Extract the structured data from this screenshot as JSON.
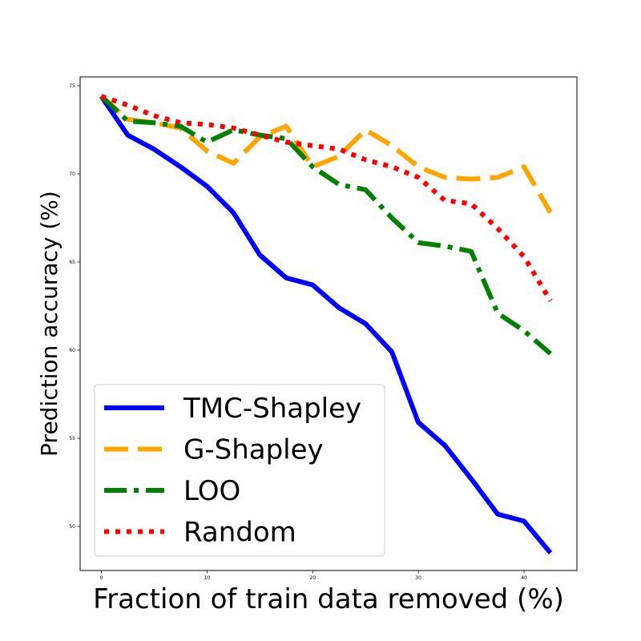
{
  "chart_data": {
    "type": "line",
    "title": "",
    "xlabel": "Fraction of train data removed (%)",
    "ylabel": "Prediction accuracy (%)",
    "xlim": [
      -2,
      45
    ],
    "ylim": [
      47.5,
      75.5
    ],
    "xticks": [
      0,
      10,
      20,
      30,
      40
    ],
    "xtick_labels": [
      "0",
      "10",
      "20",
      "30",
      "40"
    ],
    "yticks": [
      50,
      55,
      60,
      65,
      70,
      75
    ],
    "ytick_labels": [
      "50",
      "55",
      "60",
      "65",
      "70",
      "75"
    ],
    "grid": false,
    "legend_position": "lower-left",
    "x": [
      0,
      2.5,
      5,
      7.5,
      10,
      12.5,
      15,
      17.5,
      20,
      22.5,
      25,
      27.5,
      30,
      32.5,
      35,
      37.5,
      40,
      42.5
    ],
    "series": [
      {
        "name": "TMC-Shapley",
        "color": "#0000ff",
        "style": "solid",
        "values": [
          74.4,
          72.2,
          71.4,
          70.4,
          69.3,
          67.8,
          65.4,
          64.1,
          63.7,
          62.4,
          61.5,
          59.9,
          55.9,
          54.6,
          52.7,
          50.7,
          50.3,
          48.5
        ]
      },
      {
        "name": "G-Shapley",
        "color": "#ffa500",
        "style": "dashed",
        "values": [
          74.4,
          73.1,
          72.9,
          72.6,
          71.3,
          70.6,
          72.1,
          72.7,
          70.4,
          71.0,
          72.5,
          71.6,
          70.4,
          69.8,
          69.7,
          69.8,
          70.4,
          67.8
        ]
      },
      {
        "name": "LOO",
        "color": "#008000",
        "style": "dashdot",
        "values": [
          74.4,
          73.0,
          72.9,
          72.7,
          71.8,
          72.5,
          72.2,
          72.0,
          70.4,
          69.4,
          69.1,
          67.5,
          66.1,
          65.9,
          65.6,
          62.1,
          61.1,
          59.8
        ]
      },
      {
        "name": "Random",
        "color": "#ff0000",
        "style": "dotted",
        "values": [
          74.4,
          73.9,
          73.3,
          72.9,
          72.8,
          72.6,
          72.2,
          71.8,
          71.6,
          71.4,
          70.8,
          70.4,
          69.8,
          68.5,
          68.3,
          66.9,
          65.3,
          62.8
        ]
      }
    ]
  }
}
